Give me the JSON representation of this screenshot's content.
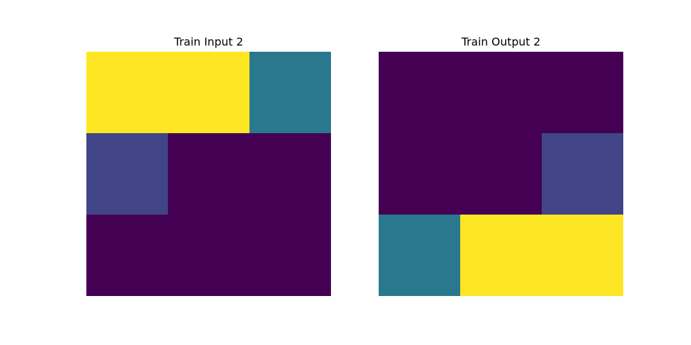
{
  "palette": {
    "0": "#440154",
    "1": "#414487",
    "3": "#2a788e",
    "9": "#fde725"
  },
  "chart_data": [
    {
      "type": "heatmap",
      "title": "Train Input 2",
      "grid": [
        [
          9,
          9,
          3
        ],
        [
          1,
          0,
          0
        ],
        [
          0,
          0,
          0
        ]
      ]
    },
    {
      "type": "heatmap",
      "title": "Train Output 2",
      "grid": [
        [
          0,
          0,
          0
        ],
        [
          0,
          0,
          1
        ],
        [
          3,
          9,
          9
        ]
      ]
    }
  ]
}
